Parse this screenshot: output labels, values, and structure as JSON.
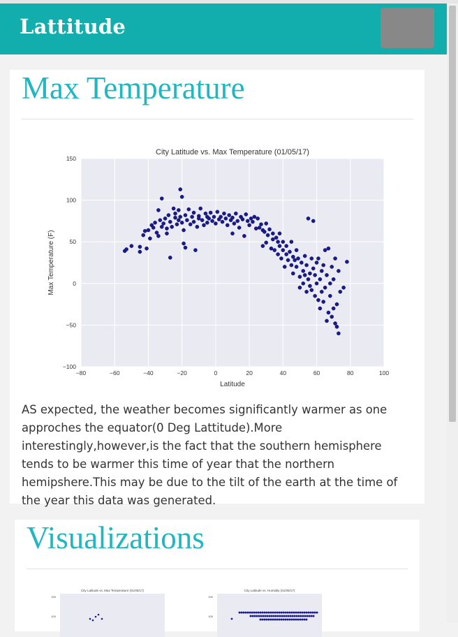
{
  "brand": "Lattitude",
  "section1": {
    "heading": "Max Temperature",
    "description": "AS expected, the weather becomes significantly warmer as one approches the equator(0 Deg Lattitude).More interestingly,however,is the fact that the southern hemisphere tends to be warmer this time of year that the northern hemipshere.This may be due to the tilt of the earth at the time of the year this data was generated."
  },
  "section2": {
    "heading": "Visualizations",
    "thumbs": [
      {
        "title": "City Latitude vs. Max Temperature (01/05/17)"
      },
      {
        "title": "City Latitude vs. Humidity (01/05/17)"
      }
    ]
  },
  "colors": {
    "nav": "#12aeae",
    "heading": "#20b8c0",
    "plot_bg": "#eaeaf2",
    "point": "#1a1a8c"
  },
  "chart_data": {
    "type": "scatter",
    "title": "City Latitude vs. Max Temperature (01/05/17)",
    "xlabel": "Latitude",
    "ylabel": "Max Temperature (F)",
    "xlim": [
      -80,
      100
    ],
    "ylim": [
      -100,
      150
    ],
    "xticks": [
      "−80",
      "−60",
      "−40",
      "−20",
      "0",
      "20",
      "40",
      "60",
      "80",
      "100"
    ],
    "yticks": [
      "150",
      "100",
      "50",
      "0",
      "−50",
      "−100"
    ],
    "grid": true,
    "points": [
      [
        -54,
        39
      ],
      [
        -53,
        41
      ],
      [
        -50,
        45
      ],
      [
        -45,
        44
      ],
      [
        -45,
        38
      ],
      [
        -43,
        58
      ],
      [
        -42,
        63
      ],
      [
        -41,
        42
      ],
      [
        -40,
        64
      ],
      [
        -39,
        54
      ],
      [
        -38,
        70
      ],
      [
        -37,
        67
      ],
      [
        -36,
        73
      ],
      [
        -35,
        61
      ],
      [
        -34,
        88
      ],
      [
        -34,
        57
      ],
      [
        -33,
        76
      ],
      [
        -32,
        102
      ],
      [
        -32,
        68
      ],
      [
        -31,
        72
      ],
      [
        -30,
        78
      ],
      [
        -29,
        66
      ],
      [
        -29,
        60
      ],
      [
        -28,
        82
      ],
      [
        -27,
        74
      ],
      [
        -27,
        31
      ],
      [
        -26,
        68
      ],
      [
        -25,
        90
      ],
      [
        -24,
        79
      ],
      [
        -24,
        84
      ],
      [
        -23,
        71
      ],
      [
        -22,
        76
      ],
      [
        -22,
        88
      ],
      [
        -21,
        80
      ],
      [
        -21,
        113
      ],
      [
        -20,
        104
      ],
      [
        -20,
        73
      ],
      [
        -19,
        64
      ],
      [
        -19,
        48
      ],
      [
        -18,
        82
      ],
      [
        -18,
        43
      ],
      [
        -17,
        76
      ],
      [
        -16,
        89
      ],
      [
        -15,
        71
      ],
      [
        -14,
        80
      ],
      [
        -13,
        85
      ],
      [
        -13,
        74
      ],
      [
        -12,
        40
      ],
      [
        -11,
        68
      ],
      [
        -10,
        81
      ],
      [
        -10,
        78
      ],
      [
        -9,
        90
      ],
      [
        -8,
        76
      ],
      [
        -7,
        70
      ],
      [
        -6,
        84
      ],
      [
        -5,
        80
      ],
      [
        -5,
        73
      ],
      [
        -4,
        78
      ],
      [
        -3,
        85
      ],
      [
        -2,
        75
      ],
      [
        -1,
        80
      ],
      [
        0,
        72
      ],
      [
        1,
        86
      ],
      [
        2,
        77
      ],
      [
        3,
        80
      ],
      [
        4,
        74
      ],
      [
        5,
        84
      ],
      [
        6,
        78
      ],
      [
        7,
        70
      ],
      [
        8,
        82
      ],
      [
        9,
        76
      ],
      [
        10,
        79
      ],
      [
        10,
        60
      ],
      [
        11,
        72
      ],
      [
        12,
        84
      ],
      [
        13,
        75
      ],
      [
        14,
        67
      ],
      [
        15,
        80
      ],
      [
        16,
        77
      ],
      [
        17,
        57
      ],
      [
        18,
        83
      ],
      [
        19,
        75
      ],
      [
        20,
        70
      ],
      [
        21,
        78
      ],
      [
        22,
        74
      ],
      [
        23,
        80
      ],
      [
        24,
        66
      ],
      [
        25,
        78
      ],
      [
        26,
        67
      ],
      [
        27,
        71
      ],
      [
        28,
        64
      ],
      [
        28,
        45
      ],
      [
        29,
        62
      ],
      [
        30,
        72
      ],
      [
        30,
        49
      ],
      [
        31,
        58
      ],
      [
        32,
        65
      ],
      [
        33,
        42
      ],
      [
        34,
        60
      ],
      [
        34,
        53
      ],
      [
        35,
        40
      ],
      [
        36,
        55
      ],
      [
        37,
        50
      ],
      [
        37,
        35
      ],
      [
        38,
        60
      ],
      [
        38,
        45
      ],
      [
        39,
        30
      ],
      [
        40,
        50
      ],
      [
        40,
        40
      ],
      [
        41,
        20
      ],
      [
        42,
        45
      ],
      [
        42,
        35
      ],
      [
        43,
        28
      ],
      [
        44,
        38
      ],
      [
        45,
        50
      ],
      [
        45,
        22
      ],
      [
        46,
        32
      ],
      [
        46,
        12
      ],
      [
        47,
        28
      ],
      [
        48,
        40
      ],
      [
        48,
        20
      ],
      [
        49,
        30
      ],
      [
        50,
        8
      ],
      [
        50,
        -5
      ],
      [
        51,
        25
      ],
      [
        52,
        15
      ],
      [
        52,
        0
      ],
      [
        53,
        33
      ],
      [
        53,
        10
      ],
      [
        54,
        -10
      ],
      [
        54,
        22
      ],
      [
        55,
        5
      ],
      [
        55,
        78
      ],
      [
        56,
        12
      ],
      [
        56,
        -3
      ],
      [
        57,
        30
      ],
      [
        57,
        -8
      ],
      [
        58,
        18
      ],
      [
        58,
        75
      ],
      [
        59,
        10
      ],
      [
        59,
        -15
      ],
      [
        60,
        25
      ],
      [
        60,
        0
      ],
      [
        61,
        -20
      ],
      [
        61,
        30
      ],
      [
        62,
        5
      ],
      [
        62,
        -30
      ],
      [
        63,
        15
      ],
      [
        63,
        -10
      ],
      [
        64,
        22
      ],
      [
        64,
        -22
      ],
      [
        65,
        40
      ],
      [
        65,
        -5
      ],
      [
        66,
        -45
      ],
      [
        66,
        10
      ],
      [
        67,
        -35
      ],
      [
        67,
        42
      ],
      [
        68,
        0
      ],
      [
        68,
        -15
      ],
      [
        69,
        -40
      ],
      [
        69,
        20
      ],
      [
        70,
        -30
      ],
      [
        70,
        5
      ],
      [
        71,
        -48
      ],
      [
        71,
        30
      ],
      [
        72,
        -25
      ],
      [
        72,
        -52
      ],
      [
        73,
        -60
      ],
      [
        73,
        15
      ],
      [
        74,
        -10
      ],
      [
        76,
        -5
      ],
      [
        78,
        26
      ]
    ]
  }
}
